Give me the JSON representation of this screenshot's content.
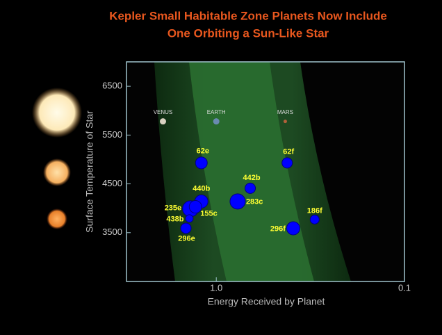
{
  "chart_data": {
    "type": "scatter",
    "title": [
      "Kepler Small Habitable Zone Planets Now Include",
      "One Orbiting a Sun-Like Star"
    ],
    "x_label": "Energy Received by Planet",
    "y_label": "Surface Temperature of Star",
    "xscale": "log",
    "xlim": [
      3,
      0.1
    ],
    "xticks": [
      {
        "value": 1,
        "label": "1.0"
      },
      0.1
    ],
    "ylim": [
      2500,
      7000
    ],
    "yticks": [
      3500,
      4500,
      5500,
      6500
    ],
    "color": "#0000ff",
    "labels": [
      "62e",
      "62f",
      "442b",
      "440b",
      "283c",
      "235e",
      "155c",
      "438b",
      "296e",
      "296f",
      "186f"
    ],
    "x": [
      1.2,
      0.42,
      0.66,
      1.2,
      0.77,
      1.37,
      1.29,
      1.39,
      1.45,
      0.39,
      0.3
    ],
    "values": [
      4930,
      4930,
      4410,
      4140,
      4140,
      3990,
      4030,
      3790,
      3590,
      3590,
      3770
    ],
    "sizes": [
      1.7,
      1.5,
      1.5,
      1.9,
      2.2,
      2.3,
      1.8,
      1.1,
      1.5,
      1.9,
      1.3
    ],
    "reference": {
      "labels": [
        "VENUS",
        "EARTH",
        "MARS"
      ],
      "x": [
        1.92,
        1,
        0.43
      ],
      "values": [
        5780,
        5780,
        5780
      ],
      "colors": [
        "#d8d0c0",
        "#6a8ab0",
        "#b0603a"
      ]
    }
  }
}
